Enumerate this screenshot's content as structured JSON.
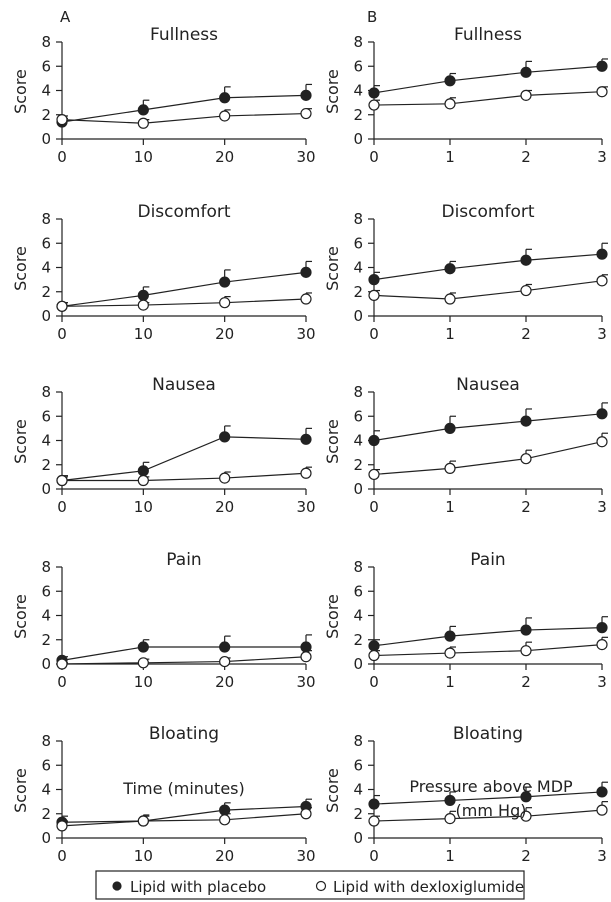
{
  "panel_labels": [
    "A",
    "B"
  ],
  "x_titles": [
    "Time (minutes)",
    "Pressure above MDP",
    "(mm Hg)"
  ],
  "legend": {
    "placement": "bottom",
    "items": [
      "Lipid with placebo",
      "Lipid with dexloxiglumide"
    ]
  },
  "chart_data": [
    {
      "type": "line",
      "title": "Fullness",
      "ylabel": "Score",
      "xlabel": "Time (minutes)",
      "x": [
        0,
        10,
        20,
        30
      ],
      "ylim": [
        0,
        8
      ],
      "yticks": [
        0,
        2,
        4,
        6,
        8
      ],
      "series": [
        {
          "name": "Lipid with placebo",
          "marker": "filled",
          "values": [
            1.4,
            2.4,
            3.4,
            3.6
          ],
          "error": [
            0.3,
            0.8,
            0.9,
            0.9
          ]
        },
        {
          "name": "Lipid with dexloxiglumide",
          "marker": "open",
          "values": [
            1.6,
            1.3,
            1.9,
            2.1
          ],
          "error": [
            0.3,
            0.3,
            0.5,
            0.4
          ]
        }
      ]
    },
    {
      "type": "line",
      "title": "Fullness",
      "ylabel": "Score",
      "xlabel": "Pressure above MDP (mm Hg)",
      "x": [
        0,
        1,
        2,
        3
      ],
      "ylim": [
        0,
        8
      ],
      "yticks": [
        0,
        2,
        4,
        6,
        8
      ],
      "series": [
        {
          "name": "Lipid with placebo",
          "marker": "filled",
          "values": [
            3.8,
            4.8,
            5.5,
            6.0
          ],
          "error": [
            0.6,
            0.6,
            0.9,
            0.6
          ]
        },
        {
          "name": "Lipid with dexloxiglumide",
          "marker": "open",
          "values": [
            2.8,
            2.9,
            3.6,
            3.9
          ],
          "error": [
            0.4,
            0.5,
            0.4,
            0.4
          ]
        }
      ]
    },
    {
      "type": "line",
      "title": "Discomfort",
      "ylabel": "Score",
      "xlabel": "Time (minutes)",
      "x": [
        0,
        10,
        20,
        30
      ],
      "ylim": [
        0,
        8
      ],
      "yticks": [
        0,
        2,
        4,
        6,
        8
      ],
      "series": [
        {
          "name": "Lipid with placebo",
          "marker": "filled",
          "values": [
            0.8,
            1.7,
            2.8,
            3.6
          ],
          "error": [
            0.3,
            0.7,
            1.0,
            0.9
          ]
        },
        {
          "name": "Lipid with dexloxiglumide",
          "marker": "open",
          "values": [
            0.8,
            0.9,
            1.1,
            1.4
          ],
          "error": [
            0.3,
            0.2,
            0.5,
            0.5
          ]
        }
      ]
    },
    {
      "type": "line",
      "title": "Discomfort",
      "ylabel": "Score",
      "xlabel": "Pressure above MDP (mm Hg)",
      "x": [
        0,
        1,
        2,
        3
      ],
      "ylim": [
        0,
        8
      ],
      "yticks": [
        0,
        2,
        4,
        6,
        8
      ],
      "series": [
        {
          "name": "Lipid with placebo",
          "marker": "filled",
          "values": [
            3.0,
            3.9,
            4.6,
            5.1
          ],
          "error": [
            0.6,
            0.6,
            0.9,
            0.9
          ]
        },
        {
          "name": "Lipid with dexloxiglumide",
          "marker": "open",
          "values": [
            1.7,
            1.4,
            2.1,
            2.9
          ],
          "error": [
            0.4,
            0.5,
            0.5,
            0.5
          ]
        }
      ]
    },
    {
      "type": "line",
      "title": "Nausea",
      "ylabel": "Score",
      "xlabel": "Time (minutes)",
      "x": [
        0,
        10,
        20,
        30
      ],
      "ylim": [
        0,
        8
      ],
      "yticks": [
        0,
        2,
        4,
        6,
        8
      ],
      "series": [
        {
          "name": "Lipid with placebo",
          "marker": "filled",
          "values": [
            0.7,
            1.5,
            4.3,
            4.1
          ],
          "error": [
            0.4,
            0.7,
            0.9,
            0.9
          ]
        },
        {
          "name": "Lipid with dexloxiglumide",
          "marker": "open",
          "values": [
            0.7,
            0.7,
            0.9,
            1.3
          ],
          "error": [
            0.3,
            0.3,
            0.5,
            0.5
          ]
        }
      ]
    },
    {
      "type": "line",
      "title": "Nausea",
      "ylabel": "Score",
      "xlabel": "Pressure above MDP (mm Hg)",
      "x": [
        0,
        1,
        2,
        3
      ],
      "ylim": [
        0,
        8
      ],
      "yticks": [
        0,
        2,
        4,
        6,
        8
      ],
      "series": [
        {
          "name": "Lipid with placebo",
          "marker": "filled",
          "values": [
            4.0,
            5.0,
            5.6,
            6.2
          ],
          "error": [
            0.8,
            1.0,
            1.0,
            0.9
          ]
        },
        {
          "name": "Lipid with dexloxiglumide",
          "marker": "open",
          "values": [
            1.2,
            1.7,
            2.5,
            3.9
          ],
          "error": [
            0.4,
            0.6,
            0.7,
            0.7
          ]
        }
      ]
    },
    {
      "type": "line",
      "title": "Pain",
      "ylabel": "Score",
      "xlabel": "Time (minutes)",
      "x": [
        0,
        10,
        20,
        30
      ],
      "ylim": [
        0,
        8
      ],
      "yticks": [
        0,
        2,
        4,
        6,
        8
      ],
      "series": [
        {
          "name": "Lipid with placebo",
          "marker": "filled",
          "values": [
            0.3,
            1.4,
            1.4,
            1.4
          ],
          "error": [
            0.3,
            0.6,
            0.9,
            1.0
          ]
        },
        {
          "name": "Lipid with dexloxiglumide",
          "marker": "open",
          "values": [
            0.0,
            0.1,
            0.2,
            0.6
          ],
          "error": [
            0.1,
            0.3,
            0.3,
            0.5
          ]
        }
      ]
    },
    {
      "type": "line",
      "title": "Pain",
      "ylabel": "Score",
      "xlabel": "Pressure above MDP (mm Hg)",
      "x": [
        0,
        1,
        2,
        3
      ],
      "ylim": [
        0,
        8
      ],
      "yticks": [
        0,
        2,
        4,
        6,
        8
      ],
      "series": [
        {
          "name": "Lipid with placebo",
          "marker": "filled",
          "values": [
            1.5,
            2.3,
            2.8,
            3.0
          ],
          "error": [
            0.5,
            0.8,
            1.0,
            0.9
          ]
        },
        {
          "name": "Lipid with dexloxiglumide",
          "marker": "open",
          "values": [
            0.7,
            0.9,
            1.1,
            1.6
          ],
          "error": [
            0.4,
            0.5,
            0.7,
            0.6
          ]
        }
      ]
    },
    {
      "type": "line",
      "title": "Bloating",
      "ylabel": "Score",
      "xlabel": "Time (minutes)",
      "x": [
        0,
        10,
        20,
        30
      ],
      "ylim": [
        0,
        8
      ],
      "yticks": [
        0,
        2,
        4,
        6,
        8
      ],
      "series": [
        {
          "name": "Lipid with placebo",
          "marker": "filled",
          "values": [
            1.3,
            1.4,
            2.3,
            2.6
          ],
          "error": [
            0.5,
            0.5,
            0.6,
            0.6
          ]
        },
        {
          "name": "Lipid with dexloxiglumide",
          "marker": "open",
          "values": [
            1.0,
            1.4,
            1.5,
            2.0
          ],
          "error": [
            0.4,
            0.4,
            0.5,
            0.5
          ]
        }
      ]
    },
    {
      "type": "line",
      "title": "Bloating",
      "ylabel": "Score",
      "xlabel": "Pressure above MDP (mm Hg)",
      "x": [
        0,
        1,
        2,
        3
      ],
      "ylim": [
        0,
        8
      ],
      "yticks": [
        0,
        2,
        4,
        6,
        8
      ],
      "series": [
        {
          "name": "Lipid with placebo",
          "marker": "filled",
          "values": [
            2.8,
            3.1,
            3.4,
            3.8
          ],
          "error": [
            0.7,
            0.7,
            0.8,
            0.8
          ]
        },
        {
          "name": "Lipid with dexloxiglumide",
          "marker": "open",
          "values": [
            1.4,
            1.6,
            1.8,
            2.3
          ],
          "error": [
            0.4,
            0.6,
            0.7,
            0.7
          ]
        }
      ]
    }
  ]
}
